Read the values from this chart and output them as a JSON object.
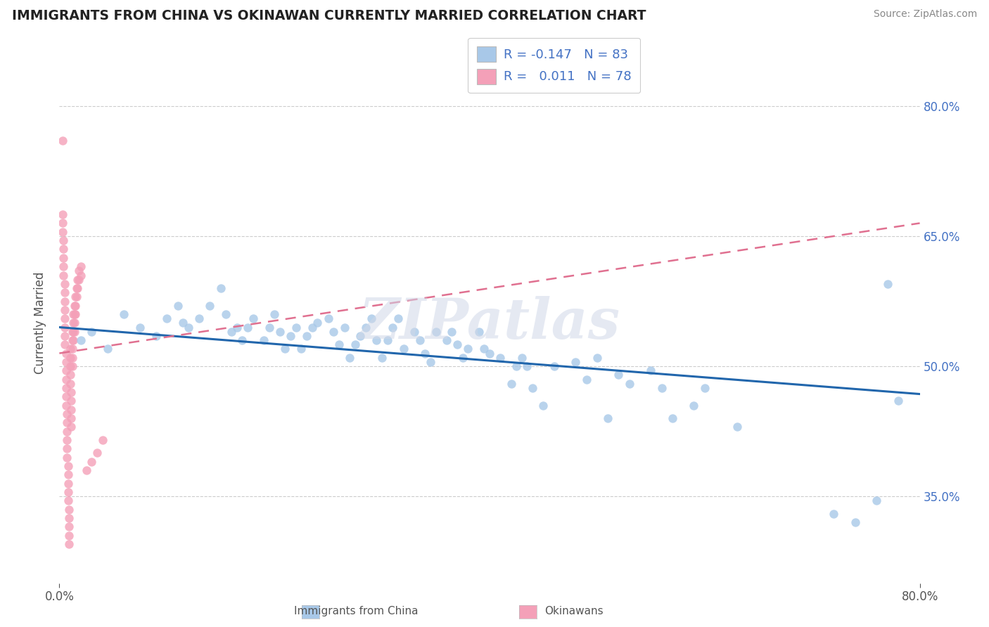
{
  "title": "IMMIGRANTS FROM CHINA VS OKINAWAN CURRENTLY MARRIED CORRELATION CHART",
  "source": "Source: ZipAtlas.com",
  "ylabel": "Currently Married",
  "legend_blue_label": "Immigrants from China",
  "legend_pink_label": "Okinawans",
  "watermark": "ZIPatlas",
  "xmin": 0.0,
  "xmax": 0.8,
  "ymin": 0.25,
  "ymax": 0.85,
  "yticks": [
    0.35,
    0.5,
    0.65,
    0.8
  ],
  "ytick_labels": [
    "35.0%",
    "50.0%",
    "65.0%",
    "80.0%"
  ],
  "blue_color": "#a8c8e8",
  "pink_color": "#f4a0b8",
  "blue_line_color": "#2166ac",
  "pink_line_color": "#e07090",
  "blue_line_start_y": 0.545,
  "blue_line_end_y": 0.468,
  "pink_line_start_y": 0.515,
  "pink_line_end_y": 0.665,
  "blue_x": [
    0.02,
    0.03,
    0.045,
    0.06,
    0.075,
    0.09,
    0.1,
    0.11,
    0.115,
    0.12,
    0.13,
    0.14,
    0.15,
    0.155,
    0.16,
    0.165,
    0.17,
    0.175,
    0.18,
    0.19,
    0.195,
    0.2,
    0.205,
    0.21,
    0.215,
    0.22,
    0.225,
    0.23,
    0.235,
    0.24,
    0.25,
    0.255,
    0.26,
    0.265,
    0.27,
    0.275,
    0.28,
    0.285,
    0.29,
    0.295,
    0.3,
    0.305,
    0.31,
    0.315,
    0.32,
    0.33,
    0.335,
    0.34,
    0.345,
    0.35,
    0.36,
    0.365,
    0.37,
    0.375,
    0.38,
    0.39,
    0.395,
    0.4,
    0.41,
    0.42,
    0.425,
    0.43,
    0.435,
    0.44,
    0.45,
    0.46,
    0.48,
    0.49,
    0.5,
    0.51,
    0.52,
    0.53,
    0.55,
    0.56,
    0.57,
    0.59,
    0.6,
    0.63,
    0.72,
    0.74,
    0.76,
    0.77,
    0.78
  ],
  "blue_y": [
    0.53,
    0.54,
    0.52,
    0.56,
    0.545,
    0.535,
    0.555,
    0.57,
    0.55,
    0.545,
    0.555,
    0.57,
    0.59,
    0.56,
    0.54,
    0.545,
    0.53,
    0.545,
    0.555,
    0.53,
    0.545,
    0.56,
    0.54,
    0.52,
    0.535,
    0.545,
    0.52,
    0.535,
    0.545,
    0.55,
    0.555,
    0.54,
    0.525,
    0.545,
    0.51,
    0.525,
    0.535,
    0.545,
    0.555,
    0.53,
    0.51,
    0.53,
    0.545,
    0.555,
    0.52,
    0.54,
    0.53,
    0.515,
    0.505,
    0.54,
    0.53,
    0.54,
    0.525,
    0.51,
    0.52,
    0.54,
    0.52,
    0.515,
    0.51,
    0.48,
    0.5,
    0.51,
    0.5,
    0.475,
    0.455,
    0.5,
    0.505,
    0.485,
    0.51,
    0.44,
    0.49,
    0.48,
    0.495,
    0.475,
    0.44,
    0.455,
    0.475,
    0.43,
    0.33,
    0.32,
    0.345,
    0.595,
    0.46
  ],
  "pink_x": [
    0.003,
    0.003,
    0.003,
    0.003,
    0.004,
    0.004,
    0.004,
    0.004,
    0.004,
    0.005,
    0.005,
    0.005,
    0.005,
    0.005,
    0.005,
    0.005,
    0.005,
    0.006,
    0.006,
    0.006,
    0.006,
    0.006,
    0.006,
    0.006,
    0.007,
    0.007,
    0.007,
    0.007,
    0.007,
    0.007,
    0.008,
    0.008,
    0.008,
    0.008,
    0.008,
    0.009,
    0.009,
    0.009,
    0.009,
    0.009,
    0.01,
    0.01,
    0.01,
    0.01,
    0.01,
    0.011,
    0.011,
    0.011,
    0.011,
    0.011,
    0.012,
    0.012,
    0.012,
    0.012,
    0.012,
    0.013,
    0.013,
    0.013,
    0.013,
    0.014,
    0.014,
    0.014,
    0.014,
    0.015,
    0.015,
    0.015,
    0.016,
    0.016,
    0.017,
    0.017,
    0.018,
    0.018,
    0.02,
    0.02,
    0.025,
    0.03,
    0.035,
    0.04
  ],
  "pink_y": [
    0.76,
    0.675,
    0.665,
    0.655,
    0.645,
    0.635,
    0.625,
    0.615,
    0.605,
    0.595,
    0.585,
    0.575,
    0.565,
    0.555,
    0.545,
    0.535,
    0.525,
    0.515,
    0.505,
    0.495,
    0.485,
    0.475,
    0.465,
    0.455,
    0.445,
    0.435,
    0.425,
    0.415,
    0.405,
    0.395,
    0.385,
    0.375,
    0.365,
    0.355,
    0.345,
    0.335,
    0.325,
    0.315,
    0.305,
    0.295,
    0.52,
    0.51,
    0.5,
    0.49,
    0.48,
    0.47,
    0.46,
    0.45,
    0.44,
    0.43,
    0.54,
    0.53,
    0.52,
    0.51,
    0.5,
    0.56,
    0.55,
    0.54,
    0.53,
    0.57,
    0.56,
    0.55,
    0.54,
    0.58,
    0.57,
    0.56,
    0.59,
    0.58,
    0.6,
    0.59,
    0.61,
    0.6,
    0.615,
    0.605,
    0.38,
    0.39,
    0.4,
    0.415
  ]
}
